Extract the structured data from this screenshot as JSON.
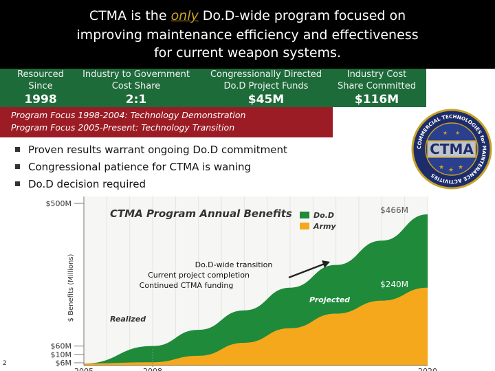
{
  "header": {
    "line1_pre": "CTMA is the ",
    "line1_emph": "only",
    "line1_post": " Do.D-wide program focused on",
    "line2": "improving maintenance efficiency and effectiveness",
    "line3": "for current weapon systems."
  },
  "stats": [
    {
      "label1": "Resourced",
      "label2": "Since",
      "value": "1998"
    },
    {
      "label1": "Industry to Government",
      "label2": "Cost Share",
      "value": "2:1"
    },
    {
      "label1": "Congressionally Directed",
      "label2": "Do.D Project Funds",
      "value": "$45M"
    },
    {
      "label1": "Industry Cost",
      "label2": "Share Committed",
      "value": "$116M"
    }
  ],
  "focus": {
    "line1": "Program Focus 1998-2004: Technology Demonstration",
    "line2": "Program Focus 2005-Present: Technology Transition"
  },
  "bullets": [
    "Proven results warrant ongoing Do.D commitment",
    "Congressional patience for CTMA is waning",
    "Do.D decision required"
  ],
  "seal": {
    "title": "CTMA",
    "ring_text": "COMMERCIAL TECHNOLOGIES for MAINTENANCE ACTIVITIES"
  },
  "chart_data": {
    "type": "area",
    "title": "CTMA Program Annual Benefits",
    "xlabel": "",
    "ylabel": "$ Benefits (Millions)",
    "xlim": [
      2005,
      2020
    ],
    "x_ticks": [
      "2005",
      "2008",
      "2020"
    ],
    "y_tick_labels": [
      "$500M",
      "$60M",
      "$10M",
      "$6M"
    ],
    "legend": [
      {
        "name": "Do.D",
        "color": "#1e8a3a"
      },
      {
        "name": "Army",
        "color": "#f5a81c"
      }
    ],
    "legend_position": "top-right",
    "series": [
      {
        "name": "Do.D",
        "color": "#1e8a3a",
        "x": [
          2005,
          2008,
          2010,
          2012,
          2014,
          2016,
          2018,
          2020
        ],
        "values": [
          6,
          60,
          110,
          170,
          240,
          310,
          385,
          466
        ]
      },
      {
        "name": "Army",
        "color": "#f5a81c",
        "x": [
          2005,
          2008,
          2010,
          2012,
          2014,
          2016,
          2018,
          2020
        ],
        "values": [
          6,
          10,
          30,
          70,
          115,
          160,
          200,
          240
        ]
      }
    ],
    "end_labels": [
      "$466M",
      "$240M"
    ],
    "annotations": [
      "Do.D-wide transition",
      "Current project completion",
      "Continued CTMA funding"
    ],
    "region_labels": [
      "Realized",
      "Projected"
    ],
    "page_number": "2"
  }
}
